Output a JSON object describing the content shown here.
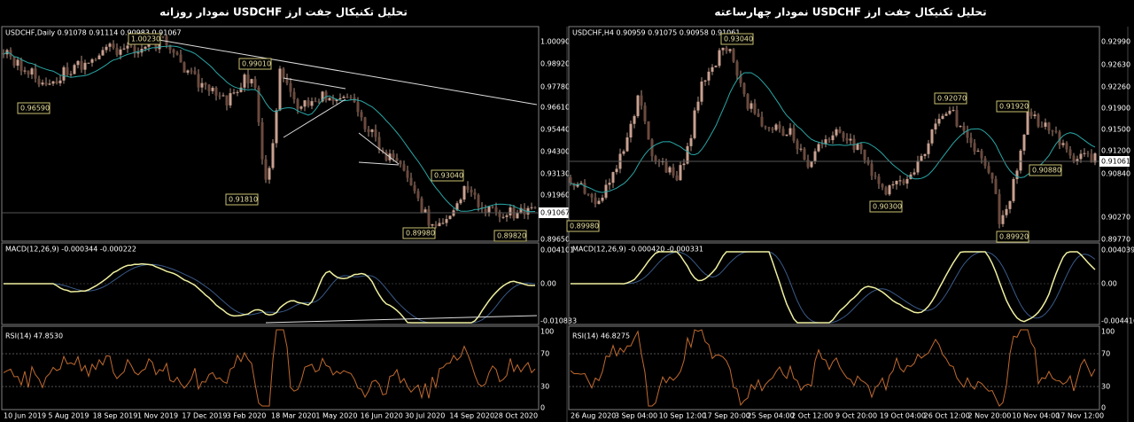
{
  "header": {
    "left_title": "تحلیل تکنیکال جفت ارز USDCHF نمودار روزانه",
    "right_title": "تحلیل تکنیکال جفت ارز USDCHF نمودار چهارساعته"
  },
  "left_chart": {
    "symbol_info": "USDCHF,Daily  0.91078 0.91114 0.90983 0.91067",
    "price_axis": [
      "1.00090",
      "0.98920",
      "0.97780",
      "0.96610",
      "0.95440",
      "0.94300",
      "0.93130",
      "0.91960",
      "0.89650"
    ],
    "current_price": "0.91067",
    "annotations": [
      "1.00230",
      "0.99010",
      "0.96590",
      "0.91810",
      "0.93040",
      "0.89980",
      "0.89820"
    ],
    "macd": {
      "label": "MACD(12,26,9) -0.000344 -0.000222",
      "axis": [
        "0.004101",
        "0.00",
        "-0.010833"
      ]
    },
    "rsi": {
      "label": "RSI(14) 47.8530",
      "axis": [
        "100",
        "70",
        "30",
        "0"
      ]
    },
    "dates": [
      "10 Jun 2019",
      "5 Aug 2019",
      "18 Sep 2019",
      "1 Nov 2019",
      "17 Dec 2019",
      "3 Feb 2020",
      "18 Mar 2020",
      "1 May 2020",
      "16 Jun 2020",
      "30 Jul 2020",
      "14 Sep 2020",
      "28 Oct 2020"
    ]
  },
  "right_chart": {
    "symbol_info": "USDCHF,H4  0.90959 0.91075 0.90958 0.91061",
    "price_axis": [
      "0.92990",
      "0.92630",
      "0.92260",
      "0.91900",
      "0.91500",
      "0.91200",
      "0.90840",
      "0.90270",
      "0.89770"
    ],
    "current_price": "0.91061",
    "annotations": [
      "0.93040",
      "0.92070",
      "0.91920",
      "0.90880",
      "0.90300",
      "0.89920",
      "0.89980"
    ],
    "macd": {
      "label": "MACD(12,26,9) -0.000420 -0.000331",
      "axis": [
        "0.004039",
        "0.00",
        "-0.004416"
      ]
    },
    "rsi": {
      "label": "RSI(14) 46.8275",
      "axis": [
        "100",
        "70",
        "30",
        "0"
      ]
    },
    "dates": [
      "26 Aug 2020",
      "3 Sep 04:00",
      "10 Sep 12:00",
      "17 Sep 20:00",
      "25 Sep 04:00",
      "2 Oct 12:00",
      "9 Oct 20:00",
      "19 Oct 04:00",
      "26 Oct 12:00",
      "2 Nov 20:00",
      "10 Nov 04:00",
      "17 Nov 12:00"
    ]
  }
}
